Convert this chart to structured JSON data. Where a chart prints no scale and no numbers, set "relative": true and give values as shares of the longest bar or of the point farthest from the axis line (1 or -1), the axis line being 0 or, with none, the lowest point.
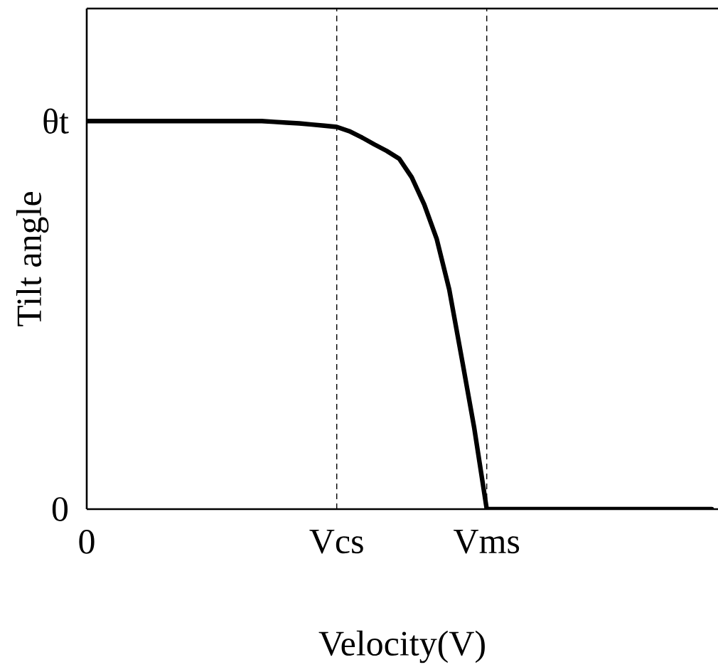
{
  "chart_data": {
    "type": "line",
    "xlabel": "Velocity(V)",
    "ylabel": "Tilt angle",
    "relative": true,
    "categories": [
      "0",
      null,
      null,
      null,
      null,
      null,
      null,
      null,
      null,
      null,
      null,
      null,
      null,
      null,
      null,
      null,
      null,
      null,
      null,
      null,
      "Vcs",
      null,
      null,
      null,
      null,
      null,
      null,
      null,
      null,
      null,
      null,
      null,
      "Vms",
      null,
      null,
      null,
      null,
      null,
      null,
      null,
      null,
      null,
      null,
      null,
      null,
      null,
      null,
      null,
      null,
      null,
      null
    ],
    "series": [
      {
        "color": "#000000",
        "values": [
          1,
          1,
          1,
          1,
          1,
          1,
          1,
          1,
          1,
          1,
          1,
          1,
          1,
          1,
          1,
          0.998,
          0.996,
          0.994,
          0.991,
          0.988,
          0.985,
          0.974,
          0.958,
          0.94,
          0.923,
          0.903,
          0.855,
          0.785,
          0.696,
          0.566,
          0.389,
          0.209,
          0,
          0,
          0,
          0,
          0,
          0,
          0,
          0,
          0,
          0,
          0,
          0,
          0,
          0,
          0,
          0,
          0,
          0,
          0
        ]
      }
    ],
    "annotations": [
      "θt",
      "0"
    ],
    "ref_lines": [
      {
        "axis": "x",
        "value": "Vcs",
        "line_style": "dashed",
        "color": "#000000"
      },
      {
        "axis": "x",
        "value": "Vms",
        "line_style": "dashed",
        "color": "#000000"
      }
    ],
    "marker": "none",
    "line_style": "solid"
  }
}
